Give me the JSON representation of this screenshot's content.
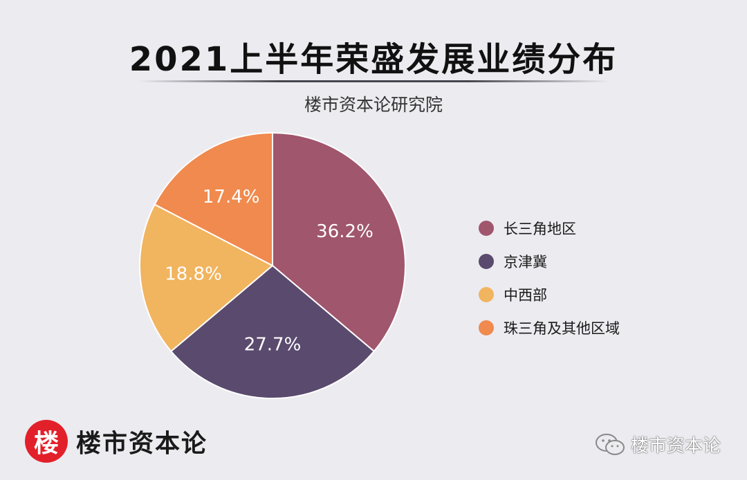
{
  "header": {
    "title": "2021上半年荣盛发展业绩分布",
    "subtitle": "楼市资本论研究院"
  },
  "chart_data": {
    "type": "pie",
    "title": "2021上半年荣盛发展业绩分布",
    "subtitle": "楼市资本论研究院",
    "slices": [
      {
        "label": "长三角地区",
        "value": 36.2,
        "display": "36.2%",
        "color": "#a0566d"
      },
      {
        "label": "京津冀",
        "value": 27.7,
        "display": "27.7%",
        "color": "#5a4a6e"
      },
      {
        "label": "中西部",
        "value": 18.8,
        "display": "18.8%",
        "color": "#f1b45f"
      },
      {
        "label": "珠三角及其他区域",
        "value": 17.4,
        "display": "17.4%",
        "color": "#f08a4e"
      }
    ],
    "legend_position": "right"
  },
  "footer": {
    "logo_mark": "楼",
    "logo_text": "楼市资本论",
    "watermark_icon": "wechat-icon",
    "watermark_text": "楼市资本论"
  }
}
